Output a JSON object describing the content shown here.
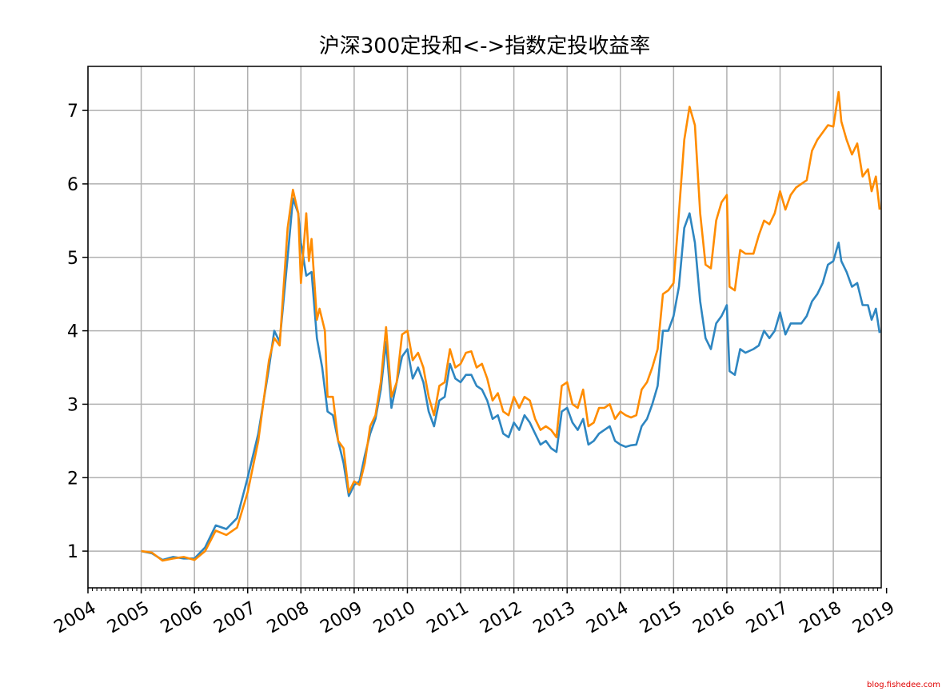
{
  "chart_data": {
    "type": "line",
    "title": "沪深300定投和<->指数定投收益率",
    "xlabel": "",
    "ylabel": "",
    "xlim": [
      2004.0,
      2018.9
    ],
    "ylim": [
      0.5,
      7.6
    ],
    "x_ticks": [
      "2004",
      "2005",
      "2006",
      "2007",
      "2008",
      "2009",
      "2010",
      "2011",
      "2012",
      "2013",
      "2014",
      "2015",
      "2016",
      "2017",
      "2018",
      "2019"
    ],
    "y_ticks": [
      "1",
      "2",
      "3",
      "4",
      "5",
      "6",
      "7"
    ],
    "grid": true,
    "legend": "none",
    "series": [
      {
        "color": "#2e86c1",
        "points": [
          [
            2005.0,
            1.0
          ],
          [
            2005.2,
            0.97
          ],
          [
            2005.4,
            0.88
          ],
          [
            2005.6,
            0.92
          ],
          [
            2005.8,
            0.9
          ],
          [
            2006.0,
            0.9
          ],
          [
            2006.2,
            1.05
          ],
          [
            2006.4,
            1.35
          ],
          [
            2006.6,
            1.3
          ],
          [
            2006.8,
            1.45
          ],
          [
            2007.0,
            2.0
          ],
          [
            2007.2,
            2.6
          ],
          [
            2007.4,
            3.5
          ],
          [
            2007.5,
            4.0
          ],
          [
            2007.6,
            3.85
          ],
          [
            2007.75,
            5.0
          ],
          [
            2007.85,
            5.8
          ],
          [
            2007.95,
            5.6
          ],
          [
            2008.0,
            5.2
          ],
          [
            2008.1,
            4.75
          ],
          [
            2008.2,
            4.8
          ],
          [
            2008.3,
            3.9
          ],
          [
            2008.4,
            3.5
          ],
          [
            2008.5,
            2.9
          ],
          [
            2008.6,
            2.85
          ],
          [
            2008.7,
            2.5
          ],
          [
            2008.8,
            2.2
          ],
          [
            2008.9,
            1.75
          ],
          [
            2009.0,
            1.9
          ],
          [
            2009.1,
            1.95
          ],
          [
            2009.2,
            2.3
          ],
          [
            2009.3,
            2.6
          ],
          [
            2009.4,
            2.8
          ],
          [
            2009.5,
            3.2
          ],
          [
            2009.6,
            3.85
          ],
          [
            2009.7,
            2.95
          ],
          [
            2009.8,
            3.3
          ],
          [
            2009.9,
            3.65
          ],
          [
            2010.0,
            3.75
          ],
          [
            2010.1,
            3.35
          ],
          [
            2010.2,
            3.5
          ],
          [
            2010.3,
            3.3
          ],
          [
            2010.4,
            2.9
          ],
          [
            2010.5,
            2.7
          ],
          [
            2010.6,
            3.05
          ],
          [
            2010.7,
            3.1
          ],
          [
            2010.8,
            3.55
          ],
          [
            2010.9,
            3.35
          ],
          [
            2011.0,
            3.3
          ],
          [
            2011.1,
            3.4
          ],
          [
            2011.2,
            3.4
          ],
          [
            2011.3,
            3.25
          ],
          [
            2011.4,
            3.2
          ],
          [
            2011.5,
            3.05
          ],
          [
            2011.6,
            2.8
          ],
          [
            2011.7,
            2.85
          ],
          [
            2011.8,
            2.6
          ],
          [
            2011.9,
            2.55
          ],
          [
            2012.0,
            2.75
          ],
          [
            2012.1,
            2.65
          ],
          [
            2012.2,
            2.85
          ],
          [
            2012.3,
            2.75
          ],
          [
            2012.4,
            2.6
          ],
          [
            2012.5,
            2.45
          ],
          [
            2012.6,
            2.5
          ],
          [
            2012.7,
            2.4
          ],
          [
            2012.8,
            2.35
          ],
          [
            2012.9,
            2.9
          ],
          [
            2013.0,
            2.95
          ],
          [
            2013.1,
            2.75
          ],
          [
            2013.2,
            2.65
          ],
          [
            2013.3,
            2.8
          ],
          [
            2013.4,
            2.45
          ],
          [
            2013.5,
            2.5
          ],
          [
            2013.6,
            2.6
          ],
          [
            2013.7,
            2.65
          ],
          [
            2013.8,
            2.7
          ],
          [
            2013.9,
            2.5
          ],
          [
            2014.0,
            2.45
          ],
          [
            2014.1,
            2.42
          ],
          [
            2014.2,
            2.44
          ],
          [
            2014.3,
            2.45
          ],
          [
            2014.4,
            2.7
          ],
          [
            2014.5,
            2.8
          ],
          [
            2014.6,
            3.0
          ],
          [
            2014.7,
            3.25
          ],
          [
            2014.8,
            4.0
          ],
          [
            2014.9,
            4.0
          ],
          [
            2015.0,
            4.2
          ],
          [
            2015.1,
            4.6
          ],
          [
            2015.2,
            5.4
          ],
          [
            2015.3,
            5.6
          ],
          [
            2015.4,
            5.2
          ],
          [
            2015.5,
            4.4
          ],
          [
            2015.6,
            3.9
          ],
          [
            2015.7,
            3.75
          ],
          [
            2015.8,
            4.1
          ],
          [
            2015.9,
            4.2
          ],
          [
            2016.0,
            4.35
          ],
          [
            2016.05,
            3.45
          ],
          [
            2016.15,
            3.4
          ],
          [
            2016.25,
            3.75
          ],
          [
            2016.35,
            3.7
          ],
          [
            2016.5,
            3.75
          ],
          [
            2016.6,
            3.8
          ],
          [
            2016.7,
            4.0
          ],
          [
            2016.8,
            3.9
          ],
          [
            2016.9,
            4.0
          ],
          [
            2017.0,
            4.25
          ],
          [
            2017.1,
            3.95
          ],
          [
            2017.2,
            4.1
          ],
          [
            2017.3,
            4.1
          ],
          [
            2017.4,
            4.1
          ],
          [
            2017.5,
            4.2
          ],
          [
            2017.6,
            4.4
          ],
          [
            2017.7,
            4.5
          ],
          [
            2017.8,
            4.65
          ],
          [
            2017.9,
            4.9
          ],
          [
            2018.0,
            4.95
          ],
          [
            2018.1,
            5.2
          ],
          [
            2018.15,
            4.95
          ],
          [
            2018.25,
            4.8
          ],
          [
            2018.35,
            4.6
          ],
          [
            2018.45,
            4.65
          ],
          [
            2018.55,
            4.35
          ],
          [
            2018.65,
            4.35
          ],
          [
            2018.72,
            4.15
          ],
          [
            2018.8,
            4.3
          ],
          [
            2018.87,
            3.97
          ]
        ]
      },
      {
        "color": "#ff8c00",
        "points": [
          [
            2005.0,
            1.0
          ],
          [
            2005.2,
            0.98
          ],
          [
            2005.4,
            0.87
          ],
          [
            2005.6,
            0.9
          ],
          [
            2005.8,
            0.92
          ],
          [
            2006.0,
            0.88
          ],
          [
            2006.2,
            1.0
          ],
          [
            2006.4,
            1.28
          ],
          [
            2006.6,
            1.22
          ],
          [
            2006.8,
            1.32
          ],
          [
            2007.0,
            1.8
          ],
          [
            2007.2,
            2.5
          ],
          [
            2007.4,
            3.6
          ],
          [
            2007.5,
            3.9
          ],
          [
            2007.6,
            3.8
          ],
          [
            2007.75,
            5.4
          ],
          [
            2007.85,
            5.92
          ],
          [
            2007.95,
            5.6
          ],
          [
            2008.0,
            4.65
          ],
          [
            2008.1,
            5.6
          ],
          [
            2008.15,
            4.95
          ],
          [
            2008.2,
            5.25
          ],
          [
            2008.3,
            4.15
          ],
          [
            2008.35,
            4.3
          ],
          [
            2008.45,
            4.0
          ],
          [
            2008.5,
            3.1
          ],
          [
            2008.6,
            3.1
          ],
          [
            2008.7,
            2.5
          ],
          [
            2008.8,
            2.4
          ],
          [
            2008.9,
            1.8
          ],
          [
            2009.0,
            1.95
          ],
          [
            2009.1,
            1.9
          ],
          [
            2009.2,
            2.2
          ],
          [
            2009.3,
            2.7
          ],
          [
            2009.4,
            2.85
          ],
          [
            2009.5,
            3.3
          ],
          [
            2009.6,
            4.05
          ],
          [
            2009.7,
            3.1
          ],
          [
            2009.8,
            3.3
          ],
          [
            2009.9,
            3.95
          ],
          [
            2010.0,
            4.0
          ],
          [
            2010.1,
            3.6
          ],
          [
            2010.2,
            3.7
          ],
          [
            2010.3,
            3.5
          ],
          [
            2010.4,
            3.1
          ],
          [
            2010.5,
            2.85
          ],
          [
            2010.6,
            3.25
          ],
          [
            2010.7,
            3.3
          ],
          [
            2010.8,
            3.75
          ],
          [
            2010.9,
            3.5
          ],
          [
            2011.0,
            3.55
          ],
          [
            2011.1,
            3.7
          ],
          [
            2011.2,
            3.72
          ],
          [
            2011.3,
            3.5
          ],
          [
            2011.4,
            3.55
          ],
          [
            2011.5,
            3.35
          ],
          [
            2011.6,
            3.05
          ],
          [
            2011.7,
            3.15
          ],
          [
            2011.8,
            2.9
          ],
          [
            2011.9,
            2.85
          ],
          [
            2012.0,
            3.1
          ],
          [
            2012.1,
            2.95
          ],
          [
            2012.2,
            3.1
          ],
          [
            2012.3,
            3.05
          ],
          [
            2012.4,
            2.8
          ],
          [
            2012.5,
            2.65
          ],
          [
            2012.6,
            2.7
          ],
          [
            2012.7,
            2.65
          ],
          [
            2012.8,
            2.55
          ],
          [
            2012.9,
            3.25
          ],
          [
            2013.0,
            3.3
          ],
          [
            2013.1,
            3.0
          ],
          [
            2013.2,
            2.95
          ],
          [
            2013.3,
            3.2
          ],
          [
            2013.4,
            2.7
          ],
          [
            2013.5,
            2.75
          ],
          [
            2013.6,
            2.95
          ],
          [
            2013.7,
            2.95
          ],
          [
            2013.8,
            3.0
          ],
          [
            2013.9,
            2.8
          ],
          [
            2014.0,
            2.9
          ],
          [
            2014.1,
            2.85
          ],
          [
            2014.2,
            2.82
          ],
          [
            2014.3,
            2.85
          ],
          [
            2014.4,
            3.2
          ],
          [
            2014.5,
            3.3
          ],
          [
            2014.6,
            3.5
          ],
          [
            2014.7,
            3.75
          ],
          [
            2014.8,
            4.5
          ],
          [
            2014.9,
            4.55
          ],
          [
            2015.0,
            4.65
          ],
          [
            2015.1,
            5.6
          ],
          [
            2015.2,
            6.6
          ],
          [
            2015.3,
            7.05
          ],
          [
            2015.4,
            6.8
          ],
          [
            2015.5,
            5.6
          ],
          [
            2015.6,
            4.9
          ],
          [
            2015.7,
            4.85
          ],
          [
            2015.8,
            5.5
          ],
          [
            2015.9,
            5.75
          ],
          [
            2016.0,
            5.85
          ],
          [
            2016.05,
            4.6
          ],
          [
            2016.15,
            4.55
          ],
          [
            2016.25,
            5.1
          ],
          [
            2016.35,
            5.05
          ],
          [
            2016.5,
            5.05
          ],
          [
            2016.6,
            5.3
          ],
          [
            2016.7,
            5.5
          ],
          [
            2016.8,
            5.45
          ],
          [
            2016.9,
            5.6
          ],
          [
            2017.0,
            5.9
          ],
          [
            2017.1,
            5.65
          ],
          [
            2017.2,
            5.85
          ],
          [
            2017.3,
            5.95
          ],
          [
            2017.4,
            6.0
          ],
          [
            2017.5,
            6.05
          ],
          [
            2017.6,
            6.45
          ],
          [
            2017.7,
            6.6
          ],
          [
            2017.8,
            6.7
          ],
          [
            2017.9,
            6.8
          ],
          [
            2018.0,
            6.78
          ],
          [
            2018.1,
            7.25
          ],
          [
            2018.15,
            6.85
          ],
          [
            2018.25,
            6.6
          ],
          [
            2018.35,
            6.4
          ],
          [
            2018.45,
            6.55
          ],
          [
            2018.55,
            6.1
          ],
          [
            2018.65,
            6.2
          ],
          [
            2018.72,
            5.9
          ],
          [
            2018.8,
            6.1
          ],
          [
            2018.87,
            5.65
          ]
        ]
      }
    ]
  },
  "watermark": "blog.fishedee.com"
}
